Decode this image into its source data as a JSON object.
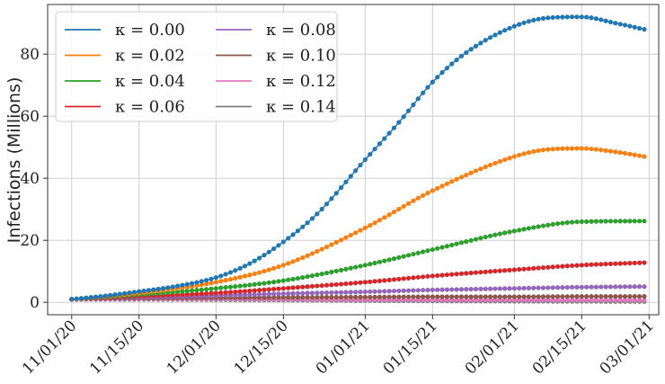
{
  "chart_data": {
    "type": "line",
    "title": "",
    "xlabel": "",
    "ylabel": "Infections (Millions)",
    "x_start": "2020-11-01",
    "x_end": "2021-02-28",
    "xlim": [
      "2020-10-27",
      "2021-03-03"
    ],
    "ylim": [
      -4,
      96
    ],
    "grid": true,
    "legend_placement": "top-left",
    "x_ticks": [
      {
        "date": "2020-11-01",
        "label": "11/01/20"
      },
      {
        "date": "2020-11-15",
        "label": "11/15/20"
      },
      {
        "date": "2020-12-01",
        "label": "12/01/20"
      },
      {
        "date": "2020-12-15",
        "label": "12/15/20"
      },
      {
        "date": "2021-01-01",
        "label": "01/01/21"
      },
      {
        "date": "2021-01-15",
        "label": "01/15/21"
      },
      {
        "date": "2021-02-01",
        "label": "02/01/21"
      },
      {
        "date": "2021-02-15",
        "label": "02/15/21"
      },
      {
        "date": "2021-03-01",
        "label": "03/01/21"
      }
    ],
    "y_ticks": [
      0,
      20,
      40,
      60,
      80
    ],
    "series": [
      {
        "name": "κ = 0.00",
        "color": "#1f77b4",
        "points": [
          [
            "2020-11-01",
            1.0
          ],
          [
            "2020-11-08",
            2.1
          ],
          [
            "2020-11-15",
            3.5
          ],
          [
            "2020-11-22",
            5.0
          ],
          [
            "2020-12-01",
            8.0
          ],
          [
            "2020-12-08",
            12.5
          ],
          [
            "2020-12-15",
            19.5
          ],
          [
            "2020-12-22",
            28.5
          ],
          [
            "2021-01-01",
            46.0
          ],
          [
            "2021-01-08",
            58.0
          ],
          [
            "2021-01-15",
            71.0
          ],
          [
            "2021-01-22",
            80.5
          ],
          [
            "2021-02-01",
            89.0
          ],
          [
            "2021-02-08",
            91.7
          ],
          [
            "2021-02-15",
            92.0
          ],
          [
            "2021-02-22",
            90.0
          ],
          [
            "2021-02-28",
            88.0
          ]
        ]
      },
      {
        "name": "κ = 0.02",
        "color": "#ff7f0e",
        "points": [
          [
            "2020-11-01",
            1.0
          ],
          [
            "2020-11-15",
            3.0
          ],
          [
            "2020-12-01",
            6.5
          ],
          [
            "2020-12-15",
            12.0
          ],
          [
            "2021-01-01",
            24.0
          ],
          [
            "2021-01-15",
            36.0
          ],
          [
            "2021-02-01",
            47.0
          ],
          [
            "2021-02-08",
            49.3
          ],
          [
            "2021-02-15",
            49.6
          ],
          [
            "2021-02-22",
            48.5
          ],
          [
            "2021-02-28",
            47.0
          ]
        ]
      },
      {
        "name": "κ = 0.04",
        "color": "#2ca02c",
        "points": [
          [
            "2020-11-01",
            1.0
          ],
          [
            "2020-11-15",
            2.5
          ],
          [
            "2020-12-01",
            4.5
          ],
          [
            "2020-12-15",
            7.0
          ],
          [
            "2021-01-01",
            12.0
          ],
          [
            "2021-01-15",
            17.0
          ],
          [
            "2021-02-01",
            23.0
          ],
          [
            "2021-02-15",
            26.0
          ],
          [
            "2021-02-28",
            26.2
          ]
        ]
      },
      {
        "name": "κ = 0.06",
        "color": "#d62728",
        "points": [
          [
            "2020-11-01",
            1.0
          ],
          [
            "2020-11-15",
            2.0
          ],
          [
            "2020-12-01",
            3.0
          ],
          [
            "2020-12-15",
            4.5
          ],
          [
            "2021-01-01",
            6.5
          ],
          [
            "2021-01-15",
            8.5
          ],
          [
            "2021-02-01",
            10.5
          ],
          [
            "2021-02-15",
            12.0
          ],
          [
            "2021-02-28",
            12.8
          ]
        ]
      },
      {
        "name": "κ = 0.08",
        "color": "#9467bd",
        "points": [
          [
            "2020-11-01",
            1.0
          ],
          [
            "2020-11-15",
            1.6
          ],
          [
            "2020-12-01",
            2.2
          ],
          [
            "2020-12-15",
            2.8
          ],
          [
            "2021-01-01",
            3.4
          ],
          [
            "2021-01-15",
            4.0
          ],
          [
            "2021-02-01",
            4.5
          ],
          [
            "2021-02-15",
            4.9
          ],
          [
            "2021-02-28",
            5.1
          ]
        ]
      },
      {
        "name": "κ = 0.10",
        "color": "#8c564b",
        "points": [
          [
            "2020-11-01",
            1.0
          ],
          [
            "2020-11-15",
            1.3
          ],
          [
            "2020-12-01",
            1.5
          ],
          [
            "2020-12-15",
            1.6
          ],
          [
            "2021-01-01",
            1.7
          ],
          [
            "2021-01-15",
            1.8
          ],
          [
            "2021-02-01",
            1.8
          ],
          [
            "2021-02-15",
            1.9
          ],
          [
            "2021-02-28",
            1.9
          ]
        ]
      },
      {
        "name": "κ = 0.12",
        "color": "#e377c2",
        "points": [
          [
            "2020-11-01",
            1.0
          ],
          [
            "2020-11-15",
            1.1
          ],
          [
            "2020-12-01",
            1.1
          ],
          [
            "2020-12-15",
            1.0
          ],
          [
            "2021-01-01",
            0.9
          ],
          [
            "2021-01-15",
            0.85
          ],
          [
            "2021-02-01",
            0.8
          ],
          [
            "2021-02-15",
            0.75
          ],
          [
            "2021-02-28",
            0.7
          ]
        ]
      },
      {
        "name": "κ = 0.14",
        "color": "#7f7f7f",
        "points": [
          [
            "2020-11-01",
            1.0
          ],
          [
            "2020-11-15",
            0.95
          ],
          [
            "2020-12-01",
            0.85
          ],
          [
            "2020-12-15",
            0.7
          ],
          [
            "2021-01-01",
            0.55
          ],
          [
            "2021-01-15",
            0.45
          ],
          [
            "2021-02-01",
            0.35
          ],
          [
            "2021-02-15",
            0.3
          ],
          [
            "2021-02-28",
            0.25
          ]
        ]
      }
    ]
  }
}
